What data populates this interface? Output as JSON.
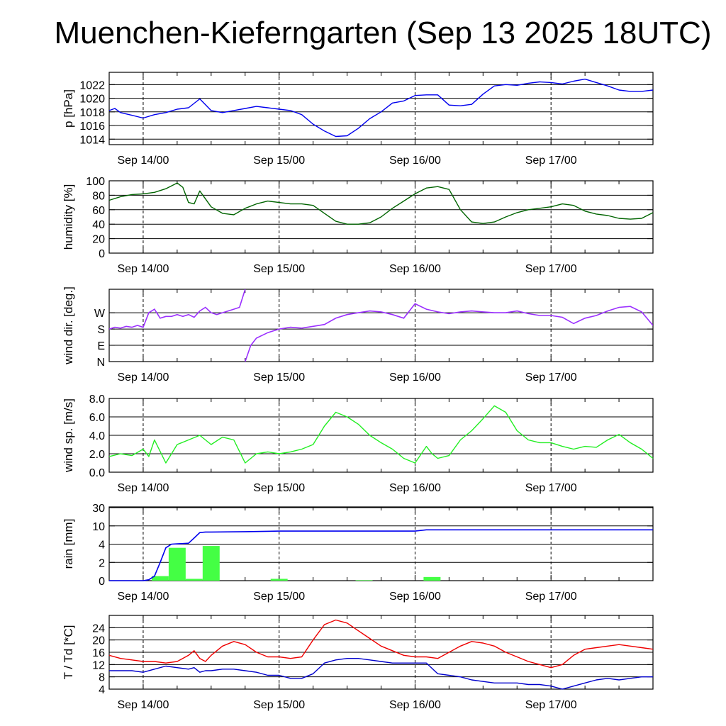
{
  "title": "Muenchen-Kieferngarten (Sep 13 2025 18UTC)",
  "x_tick_labels": [
    "Sep 14/00",
    "Sep 15/00",
    "Sep 16/00",
    "Sep 17/00"
  ],
  "colors": {
    "pressure": "#0000ee",
    "humidity": "#006400",
    "wind_dir": "#9b30ff",
    "wind_speed": "#22ee22",
    "rain_bars": "#44ff44",
    "rain_accum": "#0000ee",
    "temperature": "#ee0000",
    "dewpoint": "#0000cc",
    "grid": "#000000"
  },
  "chart_data": [
    {
      "type": "line",
      "id": "pressure",
      "ylabel": "p [hPa]",
      "x_unit": "hours since Sep 13 18UTC",
      "ylim": [
        1013.2,
        1023.8
      ],
      "yticks": [
        1014,
        1016,
        1018,
        1020,
        1022
      ],
      "ytick_labels": [
        "1014",
        "1016",
        "1018",
        "1020",
        "1022"
      ],
      "series": [
        {
          "x": [
            0,
            1,
            2,
            4,
            6,
            8,
            10,
            12,
            14,
            16,
            18,
            20,
            22,
            24,
            26,
            28,
            30,
            32,
            34,
            36,
            38,
            40,
            42,
            44,
            46,
            48,
            50,
            52,
            54,
            56,
            58,
            60,
            62,
            64,
            66,
            68,
            70,
            72,
            74,
            76,
            78,
            80,
            82,
            84,
            86,
            88,
            90,
            92,
            94,
            96
          ],
          "y": [
            1018.2,
            1018.5,
            1017.9,
            1017.5,
            1017.1,
            1017.6,
            1017.9,
            1018.4,
            1018.6,
            1019.9,
            1018.2,
            1017.9,
            1018.2,
            1018.5,
            1018.8,
            1018.6,
            1018.4,
            1018.2,
            1017.6,
            1016.2,
            1015.2,
            1014.4,
            1014.5,
            1015.6,
            1017.0,
            1018.0,
            1019.3,
            1019.6,
            1020.4,
            1020.5,
            1020.5,
            1019.0,
            1018.9,
            1019.1,
            1020.6,
            1021.8,
            1022.0,
            1021.9,
            1022.2,
            1022.4,
            1022.3,
            1022.1,
            1022.5,
            1022.8,
            1022.3,
            1021.8,
            1021.2,
            1021.0,
            1021.0,
            1021.2
          ]
        }
      ]
    },
    {
      "type": "line",
      "id": "humidity",
      "ylabel": "humidity [%]",
      "ylim": [
        0,
        100
      ],
      "yticks": [
        0,
        20,
        40,
        60,
        80,
        100
      ],
      "ytick_labels": [
        "0",
        "20",
        "40",
        "60",
        "80",
        "100"
      ],
      "series": [
        {
          "x": [
            0,
            2,
            4,
            6,
            8,
            10,
            12,
            13,
            14,
            15,
            16,
            18,
            20,
            22,
            24,
            26,
            28,
            30,
            32,
            34,
            36,
            38,
            40,
            42,
            44,
            46,
            48,
            50,
            52,
            54,
            56,
            58,
            60,
            62,
            64,
            66,
            68,
            70,
            72,
            74,
            76,
            78,
            80,
            82,
            84,
            86,
            88,
            90,
            92,
            94,
            96
          ],
          "y": [
            73,
            78,
            81,
            82,
            84,
            89,
            97,
            91,
            70,
            68,
            86,
            64,
            55,
            53,
            62,
            68,
            72,
            70,
            68,
            68,
            66,
            55,
            44,
            40,
            40,
            42,
            50,
            62,
            72,
            82,
            90,
            92,
            88,
            60,
            43,
            41,
            43,
            50,
            56,
            60,
            62,
            64,
            68,
            66,
            58,
            54,
            52,
            48,
            47,
            48,
            56
          ]
        }
      ]
    },
    {
      "type": "line",
      "id": "wind_dir",
      "ylabel": "wind dir. [deg.]",
      "ylim": [
        0,
        400
      ],
      "yticks": [
        0,
        90,
        180,
        270
      ],
      "ytick_labels": [
        "N",
        "E",
        "S",
        "W"
      ],
      "series": [
        {
          "segments": [
            {
              "x": [
                0,
                1,
                2,
                3,
                4,
                5,
                6,
                7,
                8,
                9,
                10,
                11,
                12,
                13,
                14,
                15,
                16,
                17,
                18,
                19,
                20,
                21,
                22,
                23,
                24
              ],
              "y": [
                180,
                190,
                185,
                195,
                190,
                200,
                190,
                270,
                290,
                240,
                250,
                250,
                260,
                250,
                260,
                245,
                280,
                300,
                270,
                260,
                270,
                280,
                290,
                300,
                400
              ]
            },
            {
              "x": [
                24,
                25,
                26,
                28,
                30,
                32,
                34,
                36,
                38,
                40,
                42,
                44,
                46,
                48,
                50,
                52,
                54,
                56,
                58,
                60,
                62,
                64,
                66,
                68,
                70,
                72,
                74,
                76,
                78,
                80,
                82,
                84,
                86,
                88,
                90,
                92,
                94,
                96
              ],
              "y": [
                0,
                90,
                130,
                160,
                180,
                190,
                185,
                195,
                205,
                240,
                260,
                270,
                280,
                275,
                260,
                240,
                320,
                290,
                275,
                265,
                275,
                280,
                275,
                270,
                270,
                280,
                265,
                255,
                255,
                245,
                210,
                240,
                255,
                280,
                300,
                305,
                275,
                200
              ]
            }
          ]
        }
      ]
    },
    {
      "type": "line",
      "id": "wind_speed",
      "ylabel": "wind sp. [m/s]",
      "ylim": [
        0,
        8
      ],
      "yticks": [
        0,
        2,
        4,
        6,
        8
      ],
      "ytick_labels": [
        "0.0",
        "2.0",
        "4.0",
        "6.0",
        "8.0"
      ],
      "series": [
        {
          "x": [
            0,
            2,
            4,
            6,
            7,
            8,
            10,
            12,
            14,
            16,
            18,
            20,
            22,
            24,
            26,
            28,
            30,
            32,
            34,
            36,
            38,
            40,
            42,
            44,
            46,
            48,
            50,
            52,
            54,
            56,
            57,
            58,
            60,
            62,
            64,
            66,
            68,
            70,
            72,
            74,
            76,
            78,
            80,
            82,
            84,
            86,
            88,
            90,
            92,
            94,
            96
          ],
          "y": [
            1.7,
            2.0,
            1.8,
            2.5,
            1.7,
            3.5,
            1.0,
            3.0,
            3.5,
            4.0,
            3.0,
            3.8,
            3.5,
            1.0,
            2.0,
            2.2,
            2.0,
            2.2,
            2.5,
            3.0,
            5.0,
            6.5,
            6.0,
            5.2,
            4.0,
            3.2,
            2.5,
            1.5,
            1.0,
            2.8,
            2.0,
            1.5,
            1.8,
            3.5,
            4.5,
            5.8,
            7.2,
            6.5,
            4.5,
            3.5,
            3.2,
            3.2,
            2.8,
            2.5,
            2.8,
            2.7,
            3.5,
            4.1,
            3.2,
            2.5,
            1.5
          ]
        }
      ]
    },
    {
      "type": "bar+line",
      "id": "rain",
      "ylabel": "rain [mm]",
      "scale": "piecewise",
      "yticks": [
        0,
        2,
        4,
        10,
        30
      ],
      "ytick_labels": [
        "0",
        "2",
        "4",
        "10",
        "30"
      ],
      "bars": {
        "x_start": [
          7.5,
          10.5,
          13.5,
          16.5,
          28.5,
          43.5,
          55.5
        ],
        "x_end": [
          10.5,
          13.5,
          16.5,
          19.5,
          31.5,
          46.5,
          58.5
        ],
        "values": [
          0.5,
          3.6,
          0.2,
          3.8,
          0.2,
          0.05,
          0.4
        ]
      },
      "accumulated": {
        "x": [
          0,
          6,
          7,
          8,
          9,
          10,
          11,
          12,
          14,
          15,
          16,
          17,
          18,
          24,
          30,
          36,
          42,
          48,
          54,
          56,
          60,
          66,
          72,
          78,
          84,
          90,
          96
        ],
        "y": [
          0,
          0,
          0.1,
          0.5,
          2.0,
          3.6,
          4.0,
          4.1,
          4.3,
          6.0,
          7.8,
          8.0,
          8.0,
          8.1,
          8.3,
          8.3,
          8.3,
          8.3,
          8.3,
          8.7,
          8.7,
          8.7,
          8.7,
          8.7,
          8.7,
          8.7,
          8.7
        ]
      }
    },
    {
      "type": "line",
      "id": "temperature",
      "ylabel": "T / Td [*C]",
      "ylim": [
        4,
        28
      ],
      "yticks": [
        4,
        8,
        12,
        16,
        20,
        24
      ],
      "ytick_labels": [
        "4",
        "8",
        "12",
        "16",
        "20",
        "24"
      ],
      "series": [
        {
          "x": [
            0,
            2,
            4,
            6,
            8,
            10,
            12,
            14,
            15,
            16,
            17,
            18,
            20,
            22,
            24,
            26,
            28,
            30,
            32,
            34,
            36,
            38,
            40,
            42,
            44,
            46,
            48,
            50,
            52,
            54,
            56,
            58,
            60,
            62,
            64,
            66,
            68,
            70,
            72,
            74,
            76,
            78,
            80,
            82,
            84,
            86,
            88,
            90,
            92,
            94,
            96
          ],
          "y": [
            15,
            14,
            13.5,
            13,
            13,
            12.5,
            13,
            15,
            16.5,
            14,
            13,
            15,
            18,
            19.5,
            18.5,
            16,
            14.5,
            14.5,
            14,
            14.5,
            20,
            25,
            26.5,
            25.5,
            23,
            20.5,
            18,
            16.5,
            15,
            14.5,
            14.5,
            14,
            16,
            18,
            19.5,
            19,
            18,
            16,
            14.5,
            13,
            12,
            11,
            12,
            15,
            17,
            17.5,
            18,
            18.5,
            18,
            17.5,
            17
          ]
        },
        {
          "x": [
            0,
            2,
            4,
            6,
            8,
            10,
            12,
            14,
            15,
            16,
            17,
            18,
            20,
            22,
            24,
            26,
            28,
            30,
            32,
            34,
            36,
            38,
            40,
            42,
            44,
            46,
            48,
            50,
            52,
            54,
            56,
            58,
            60,
            62,
            64,
            66,
            68,
            70,
            72,
            74,
            76,
            78,
            80,
            82,
            84,
            86,
            88,
            90,
            92,
            94,
            96
          ],
          "y": [
            10,
            10,
            10,
            9.5,
            10.5,
            11.5,
            11,
            10.5,
            11,
            9.5,
            10,
            10,
            10.5,
            10.5,
            10,
            9.5,
            8.5,
            8.5,
            7.5,
            7.5,
            9,
            12.5,
            13.5,
            14,
            14,
            13.5,
            13,
            12.5,
            12.5,
            12.5,
            12.5,
            9,
            8.5,
            8,
            7,
            6.5,
            6,
            6,
            6,
            5.5,
            5.5,
            5,
            4,
            5,
            6,
            7,
            7.5,
            7,
            7.5,
            8,
            8
          ]
        }
      ]
    }
  ]
}
